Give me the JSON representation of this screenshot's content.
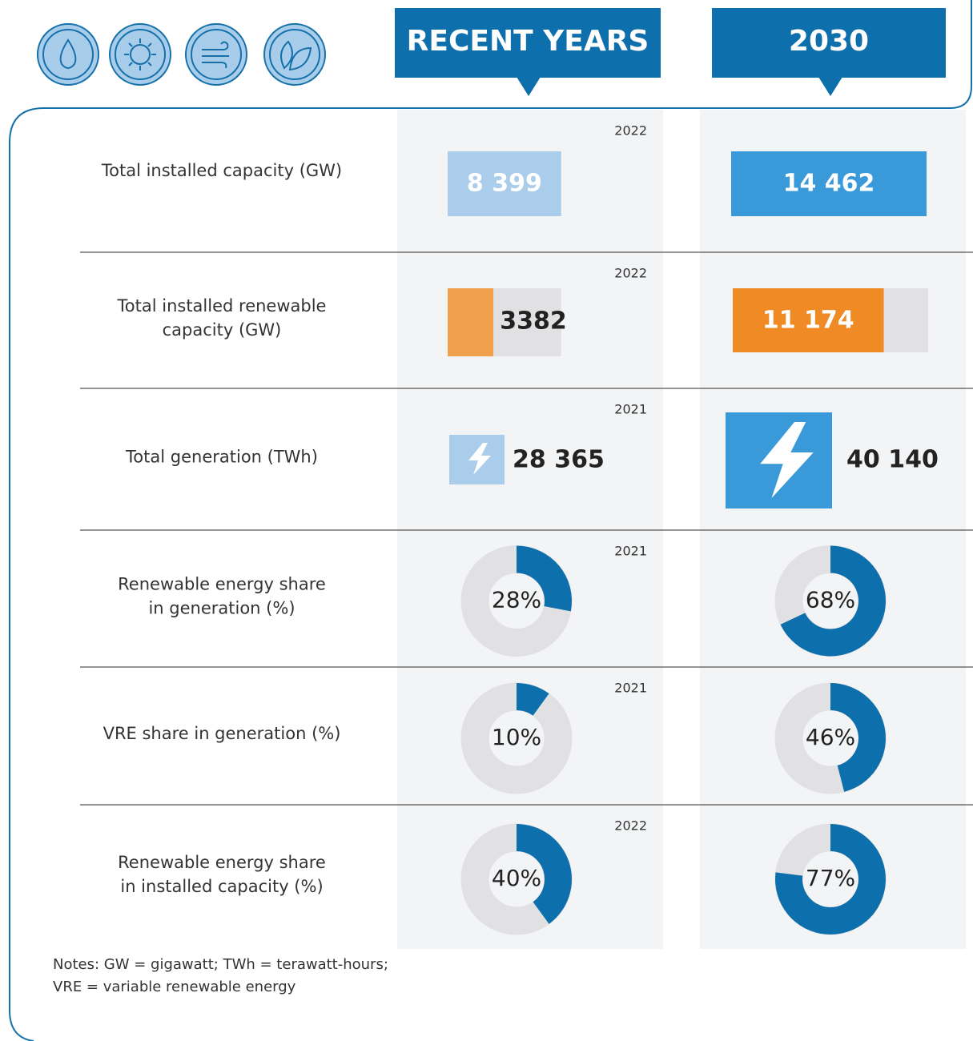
{
  "header": {
    "recent": "RECENT YEARS",
    "target": "2030"
  },
  "rows": [
    {
      "label": [
        "Total installed capacity (GW)"
      ],
      "kind": "bar",
      "recent": {
        "year": 2022,
        "value": 8399,
        "value_label": "8 399"
      },
      "target": {
        "value": 14462,
        "value_label": "14 462"
      }
    },
    {
      "label": [
        "Total installed renewable",
        "capacity (GW)"
      ],
      "kind": "share-bar",
      "recent": {
        "year": 2022,
        "value": 3382
      },
      "target": {
        "value": 11174,
        "value_label": "11 174"
      }
    },
    {
      "label": [
        "Total generation (TWh)"
      ],
      "kind": "icon",
      "recent": {
        "year": 2021,
        "value": 28365,
        "value_label": "28 365"
      },
      "target": {
        "value": 40140,
        "value_label": "40 140"
      }
    },
    {
      "label": [
        "Renewable energy share",
        "in generation (%)"
      ],
      "kind": "donut",
      "recent": {
        "year": 2021,
        "value": 28,
        "value_label": "28%"
      },
      "target": {
        "value": 68,
        "value_label": "68%"
      }
    },
    {
      "label": [
        "VRE share in generation (%)"
      ],
      "kind": "donut",
      "recent": {
        "year": 2021,
        "value": 10,
        "value_label": "10%"
      },
      "target": {
        "value": 46,
        "value_label": "46%"
      }
    },
    {
      "label": [
        "Renewable energy share",
        "in installed capacity (%)"
      ],
      "kind": "donut",
      "recent": {
        "year": 2022,
        "value": 40,
        "value_label": "40%"
      },
      "target": {
        "value": 77,
        "value_label": "77%"
      }
    }
  ],
  "notes": [
    "Notes: GW = gigawatt; TWh = terawatt-hours;",
    "VRE = variable renewable energy"
  ]
}
